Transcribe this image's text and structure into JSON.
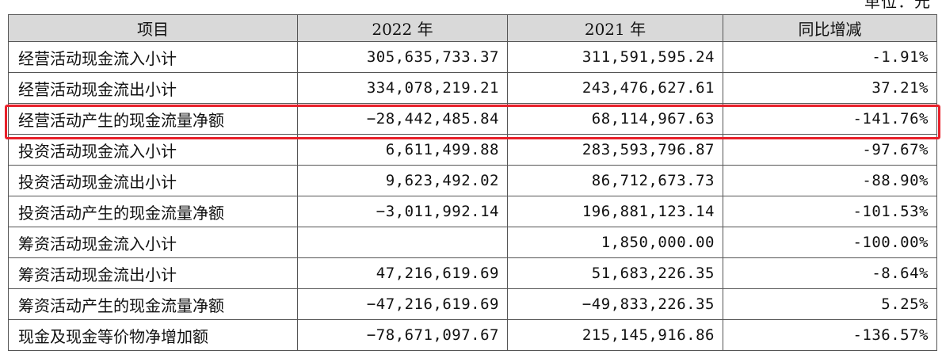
{
  "unit_label": "单位：元",
  "columns": [
    "项目",
    "2022 年",
    "2021 年",
    "同比增减"
  ],
  "rows": [
    {
      "item": "经营活动现金流入小计",
      "y2022": "305,635,733.37",
      "y2021": "311,591,595.24",
      "change": "-1.91%"
    },
    {
      "item": "经营活动现金流出小计",
      "y2022": "334,078,219.21",
      "y2021": "243,476,627.61",
      "change": "37.21%"
    },
    {
      "item": "经营活动产生的现金流量净额",
      "y2022": "−28,442,485.84",
      "y2021": "68,114,967.63",
      "change": "-141.76%"
    },
    {
      "item": "投资活动现金流入小计",
      "y2022": "6,611,499.88",
      "y2021": "283,593,796.87",
      "change": "-97.67%"
    },
    {
      "item": "投资活动现金流出小计",
      "y2022": "9,623,492.02",
      "y2021": "86,712,673.73",
      "change": "-88.90%"
    },
    {
      "item": "投资活动产生的现金流量净额",
      "y2022": "−3,011,992.14",
      "y2021": "196,881,123.14",
      "change": "-101.53%"
    },
    {
      "item": "筹资活动现金流入小计",
      "y2022": "",
      "y2021": "1,850,000.00",
      "change": "-100.00%"
    },
    {
      "item": "筹资活动现金流出小计",
      "y2022": "47,216,619.69",
      "y2021": "51,683,226.35",
      "change": "-8.64%"
    },
    {
      "item": "筹资活动产生的现金流量净额",
      "y2022": "−47,216,619.69",
      "y2021": "−49,833,226.35",
      "change": "5.25%"
    },
    {
      "item": "现金及现金等价物净增加额",
      "y2022": "−78,671,097.67",
      "y2021": "215,145,916.86",
      "change": "-136.57%"
    }
  ],
  "highlight_color": "#e8202a"
}
